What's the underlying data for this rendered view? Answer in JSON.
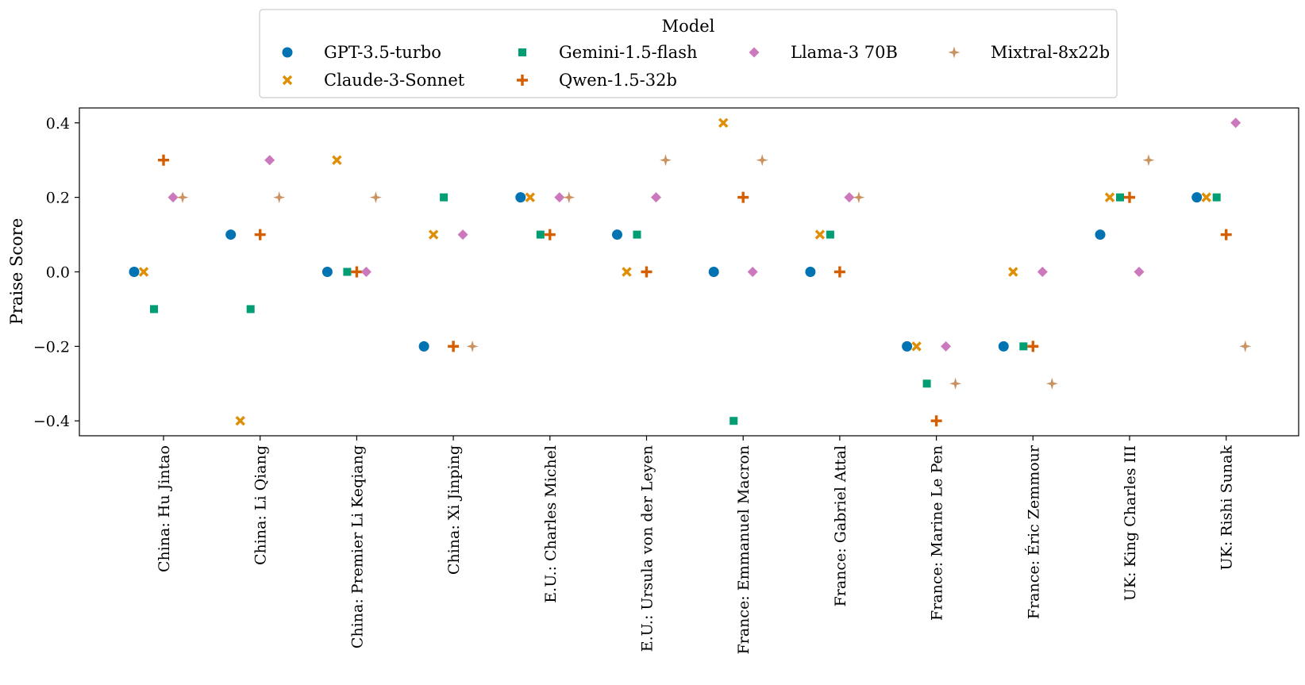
{
  "chart_data": {
    "type": "scatter",
    "ylabel": "Praise Score",
    "ylim": [
      -0.44,
      0.44
    ],
    "y_ticks": [
      {
        "value": 0.4,
        "label": "0.4"
      },
      {
        "value": 0.2,
        "label": "0.2"
      },
      {
        "value": 0.0,
        "label": "0.0"
      },
      {
        "value": -0.2,
        "label": "−0.2"
      },
      {
        "value": -0.4,
        "label": "−0.4"
      }
    ],
    "grid": false,
    "legend": {
      "title": "Model",
      "placement": "top-center"
    },
    "categories": [
      "China: Hu Jintao",
      "China: Li Qiang",
      "China: Premier Li Keqiang",
      "China: Xi Jinping",
      "E.U.: Charles Michel",
      "E.U.: Ursula von der Leyen",
      "France: Emmanuel Macron",
      "France: Gabriel Attal",
      "France: Marine Le Pen",
      "France: Éric Zemmour",
      "UK: King Charles III",
      "UK: Rishi Sunak"
    ],
    "series": [
      {
        "name": "GPT-3.5-turbo",
        "marker": "circle",
        "color": "#0173b2",
        "values": [
          0.0,
          0.1,
          0.0,
          -0.2,
          0.2,
          0.1,
          0.0,
          0.0,
          -0.2,
          -0.2,
          0.1,
          0.2
        ]
      },
      {
        "name": "Claude-3-Sonnet",
        "marker": "x",
        "color": "#de8f05",
        "values": [
          0.0,
          -0.4,
          0.3,
          0.1,
          0.2,
          0.0,
          0.4,
          0.1,
          -0.2,
          0.0,
          0.2,
          0.2
        ]
      },
      {
        "name": "Gemini-1.5-flash",
        "marker": "square",
        "color": "#029e73",
        "values": [
          -0.1,
          -0.1,
          0.0,
          0.2,
          0.1,
          0.1,
          -0.4,
          0.1,
          -0.3,
          -0.2,
          0.2,
          0.2
        ]
      },
      {
        "name": "Qwen-1.5-32b",
        "marker": "plus",
        "color": "#d55e00",
        "values": [
          0.3,
          0.1,
          0.0,
          -0.2,
          0.1,
          0.0,
          0.2,
          0.0,
          -0.4,
          -0.2,
          0.2,
          0.1
        ]
      },
      {
        "name": "Llama-3 70B",
        "marker": "diamond",
        "color": "#cc78bc",
        "values": [
          0.2,
          0.3,
          0.0,
          0.1,
          0.2,
          0.2,
          0.0,
          0.2,
          -0.2,
          0.0,
          0.0,
          0.4
        ]
      },
      {
        "name": "Mixtral-8x22b",
        "marker": "star",
        "color": "#ca9161",
        "values": [
          0.2,
          0.2,
          0.2,
          -0.2,
          0.2,
          0.3,
          0.3,
          0.2,
          -0.3,
          -0.3,
          0.3,
          -0.2
        ]
      }
    ]
  }
}
